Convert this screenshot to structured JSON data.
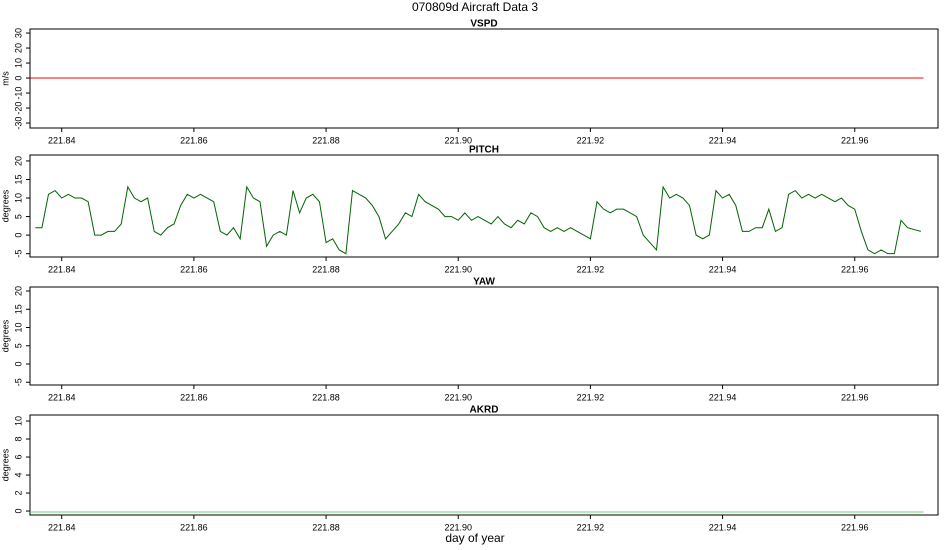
{
  "title": "070809d   Aircraft Data 3",
  "xlabel": "day of year",
  "chart_data": [
    {
      "type": "line",
      "title": "VSPD",
      "ylabel": "m/s",
      "xlim": [
        221.8352,
        221.9726
      ],
      "ylim": [
        -33.3,
        32.7
      ],
      "xticks": [
        221.84,
        221.86,
        221.88,
        {
          "value": 221.9,
          "label": "221.90"
        },
        221.92,
        221.94,
        221.96
      ],
      "yticks": [
        30,
        20,
        10,
        0,
        -10,
        -20,
        -30
      ],
      "series": [
        {
          "color": "#ff0000",
          "x": [
            221.8352,
            221.9704
          ],
          "values": [
            0,
            0
          ]
        }
      ]
    },
    {
      "type": "line",
      "title": "PITCH",
      "ylabel": "degrees",
      "xlim": [
        221.8352,
        221.9726
      ],
      "ylim": [
        -5.9,
        21.6
      ],
      "xticks": [
        221.84,
        221.86,
        221.88,
        {
          "value": 221.9,
          "label": "221.90"
        },
        221.92,
        221.94,
        221.96
      ],
      "yticks": [
        20,
        15,
        10,
        5,
        0,
        -5
      ],
      "series": [
        {
          "color": "#006400",
          "x": [
            221.836,
            221.837,
            221.838,
            221.839,
            221.84,
            221.841,
            221.842,
            221.843,
            221.844,
            221.845,
            221.846,
            221.847,
            221.848,
            221.849,
            221.85,
            221.851,
            221.852,
            221.853,
            221.854,
            221.855,
            221.856,
            221.857,
            221.858,
            221.859,
            221.86,
            221.861,
            221.862,
            221.863,
            221.864,
            221.865,
            221.866,
            221.867,
            221.868,
            221.869,
            221.87,
            221.871,
            221.872,
            221.873,
            221.874,
            221.875,
            221.876,
            221.877,
            221.878,
            221.879,
            221.88,
            221.881,
            221.882,
            221.883,
            221.884,
            221.885,
            221.886,
            221.887,
            221.888,
            221.889,
            221.89,
            221.891,
            221.892,
            221.893,
            221.894,
            221.895,
            221.896,
            221.897,
            221.898,
            221.899,
            221.9,
            221.901,
            221.902,
            221.903,
            221.904,
            221.905,
            221.906,
            221.907,
            221.908,
            221.909,
            221.91,
            221.911,
            221.912,
            221.913,
            221.914,
            221.915,
            221.916,
            221.917,
            221.918,
            221.919,
            221.92,
            221.921,
            221.922,
            221.923,
            221.924,
            221.925,
            221.926,
            221.927,
            221.928,
            221.929,
            221.93,
            221.931,
            221.932,
            221.933,
            221.934,
            221.935,
            221.936,
            221.937,
            221.938,
            221.939,
            221.94,
            221.941,
            221.942,
            221.943,
            221.944,
            221.945,
            221.946,
            221.947,
            221.948,
            221.949,
            221.95,
            221.951,
            221.952,
            221.953,
            221.954,
            221.955,
            221.956,
            221.957,
            221.958,
            221.959,
            221.96,
            221.961,
            221.962,
            221.963,
            221.964,
            221.965,
            221.966,
            221.967,
            221.968,
            221.969,
            221.97
          ],
          "values": [
            2,
            2,
            11,
            12,
            10,
            11,
            10,
            10,
            9,
            0,
            0,
            1,
            1,
            3,
            13,
            10,
            9,
            10,
            1,
            0,
            2,
            3,
            8,
            11,
            10,
            11,
            10,
            9,
            1,
            0,
            2,
            -1,
            13,
            10,
            9,
            -3,
            0,
            1,
            0,
            12,
            6,
            10,
            11,
            9,
            -2,
            -1,
            -4,
            -5,
            12,
            11,
            10,
            8,
            5,
            -1,
            1,
            3,
            6,
            5,
            11,
            9,
            8,
            7,
            5,
            5,
            4,
            6,
            4,
            5,
            4,
            3,
            5,
            3,
            2,
            4,
            3,
            6,
            5,
            2,
            1,
            2,
            1,
            2,
            1,
            0,
            -1,
            9,
            7,
            6,
            7,
            7,
            6,
            5,
            0,
            -2,
            -4,
            13,
            10,
            11,
            10,
            8,
            0,
            -1,
            0,
            12,
            10,
            11,
            8,
            1,
            1,
            2,
            2,
            7,
            1,
            2,
            11,
            12,
            10,
            11,
            10,
            11,
            10,
            9,
            10,
            8,
            7,
            1,
            -4,
            -5,
            -4,
            -5,
            -5,
            4,
            2,
            1.5,
            1
          ]
        }
      ]
    },
    {
      "type": "line",
      "title": "YAW",
      "ylabel": "degrees",
      "xlim": [
        221.8352,
        221.9726
      ],
      "ylim": [
        -5.75,
        21.1
      ],
      "xticks": [
        221.84,
        221.86,
        221.88,
        {
          "value": 221.9,
          "label": "221.90"
        },
        221.92,
        221.94,
        221.96
      ],
      "yticks": [
        20,
        15,
        10,
        5,
        0,
        -5
      ],
      "series": []
    },
    {
      "type": "line",
      "title": "AKRD",
      "ylabel": "degrees",
      "xlim": [
        221.8352,
        221.9726
      ],
      "ylim": [
        -0.44,
        10.67
      ],
      "xticks": [
        221.84,
        221.86,
        221.88,
        {
          "value": 221.9,
          "label": "221.90"
        },
        221.92,
        221.94,
        221.96
      ],
      "yticks": [
        10,
        8,
        6,
        4,
        2,
        0
      ],
      "series": [
        {
          "color": "#66dd66",
          "x": [
            221.8352,
            221.9704
          ],
          "values": [
            -0.1,
            -0.1
          ]
        }
      ]
    }
  ]
}
